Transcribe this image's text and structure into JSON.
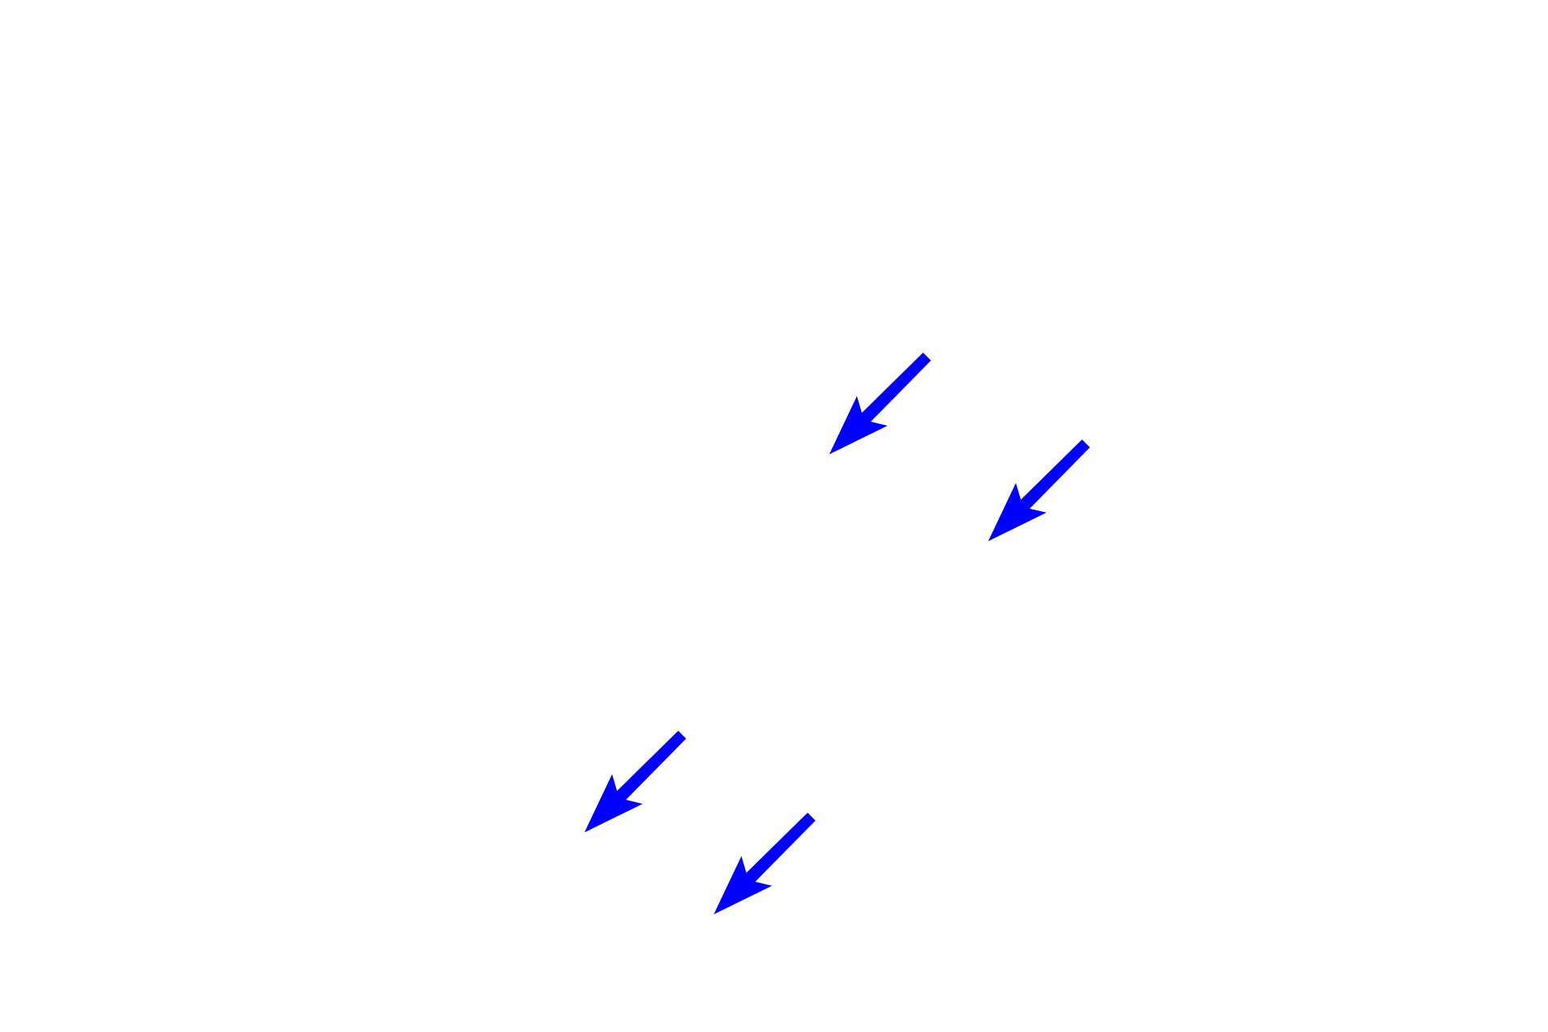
{
  "background_color": "#ffffff",
  "arrow_color": "#0000ff",
  "arrows": [
    {
      "icon": "arrow-down-left-icon"
    },
    {
      "icon": "arrow-down-left-icon"
    },
    {
      "icon": "arrow-down-left-icon"
    },
    {
      "icon": "arrow-down-left-icon"
    }
  ]
}
